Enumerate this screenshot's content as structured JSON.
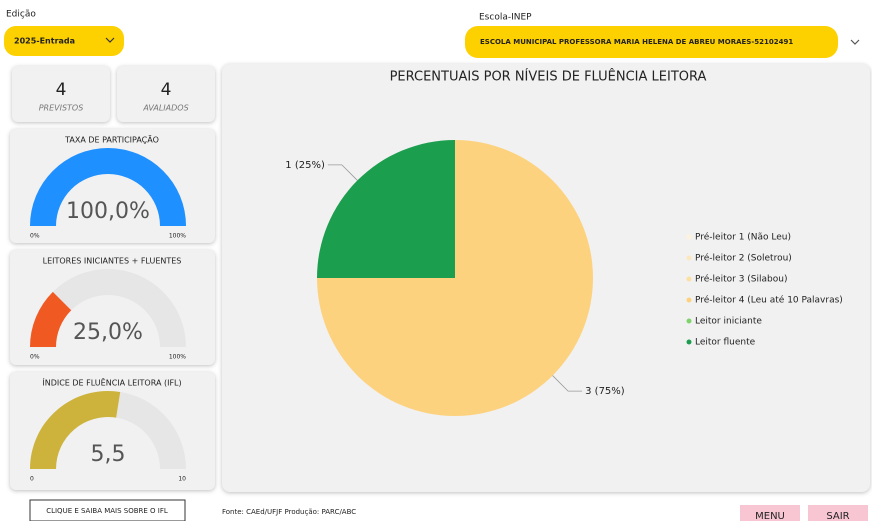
{
  "filters": {
    "edicao": {
      "label": "Edição",
      "value": "2025-Entrada"
    },
    "escola": {
      "label": "Escola-INEP",
      "value": "ESCOLA MUNICIPAL PROFESSORA MARIA HELENA DE ABREU MORAES-52102491"
    }
  },
  "cards": [
    {
      "value": 4,
      "label": "PREVISTOS"
    },
    {
      "value": 4,
      "label": "AVALIADOS"
    }
  ],
  "gauges": [
    {
      "title": "TAXA DE PARTICIPAÇÃO",
      "value": 100,
      "value_label": "100,0%",
      "color": "#1e90ff",
      "ticks": [
        {
          "value": 0,
          "label": "0%"
        },
        {
          "value": 100,
          "label": "100%"
        }
      ]
    },
    {
      "title": "LEITORES INICIANTES + FLUENTES",
      "value": 25,
      "value_label": "25,0%",
      "color": "#f05a22",
      "ticks": [
        {
          "value": 0,
          "label": "0%"
        },
        {
          "value": 100,
          "label": "100%"
        }
      ]
    },
    {
      "title": "ÍNDICE DE FLUÊNCIA LEITORA (IFL)",
      "value": 5.5,
      "value_label": "5,5",
      "color": "#cdb33b",
      "ticks": [
        0,
        10
      ]
    }
  ],
  "chart_data": {
    "type": "pie",
    "title": "PERCENTUAIS POR NÍVEIS DE FLUÊNCIA LEITORA",
    "categories": [
      "Pré-leitor 1 (Não Leu)",
      "Pré-leitor 2 (Soletrou)",
      "Pré-leitor 3 (Silabou)",
      "Pré-leitor 4 (Leu até 10 Palavras)",
      "Leitor iniciante",
      "Leitor fluente"
    ],
    "values": [
      0,
      0,
      0,
      3,
      0,
      1
    ],
    "value_labels": [
      null,
      null,
      null,
      "3 (75%)",
      null,
      "1 (25%)"
    ],
    "colors": [
      "#fdf3dc",
      "#fbe9bd",
      "#fce0a0",
      "#fdd27f",
      "#7fd36b",
      "#1c9e4f"
    ]
  },
  "footer": {
    "button": "CLIQUE E SAIBA MAIS SOBRE O IFL",
    "source": "Fonte: CAEd/UFJF  Produção: PARC/ABC",
    "nav": [
      "MENU",
      "SAIR"
    ]
  }
}
